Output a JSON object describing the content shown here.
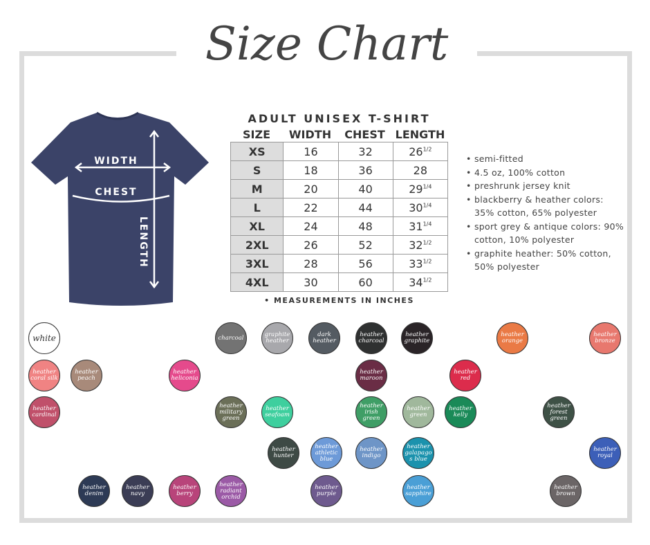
{
  "title": "Size Chart",
  "shirt": {
    "color": "#3b4368",
    "labels": {
      "width": "WIDTH",
      "chest": "CHEST",
      "length": "LENGTH"
    }
  },
  "table": {
    "title": "ADULT UNISEX T-SHIRT",
    "headers": [
      "SIZE",
      "WIDTH",
      "CHEST",
      "LENGTH"
    ],
    "rows": [
      {
        "size": "XS",
        "width": "16",
        "chest": "32",
        "length": "26",
        "frac": "1/2"
      },
      {
        "size": "S",
        "width": "18",
        "chest": "36",
        "length": "28",
        "frac": ""
      },
      {
        "size": "M",
        "width": "20",
        "chest": "40",
        "length": "29",
        "frac": "1/4"
      },
      {
        "size": "L",
        "width": "22",
        "chest": "44",
        "length": "30",
        "frac": "1/4"
      },
      {
        "size": "XL",
        "width": "24",
        "chest": "48",
        "length": "31",
        "frac": "1/4"
      },
      {
        "size": "2XL",
        "width": "26",
        "chest": "52",
        "length": "32",
        "frac": "1/2"
      },
      {
        "size": "3XL",
        "width": "28",
        "chest": "56",
        "length": "33",
        "frac": "1/2"
      },
      {
        "size": "4XL",
        "width": "30",
        "chest": "60",
        "length": "34",
        "frac": "1/2"
      }
    ],
    "note": "• MEASUREMENTS IN INCHES"
  },
  "features": [
    "semi-fitted",
    "4.5 oz, 100% cotton",
    "preshrunk jersey knit",
    "blackberry & heather colors: 35% cotton, 65% polyester",
    "sport grey & antique colors: 90% cotton, 10% polyester",
    "graphite heather: 50% cotton, 50% polyester"
  ],
  "swatches": [
    {
      "label": "white",
      "color": "#ffffff"
    },
    {
      "label": "charcoal",
      "color": "#737373"
    },
    {
      "label": "graphite heather",
      "color": "#a8a8ac"
    },
    {
      "label": "dark heather",
      "color": "#545b62"
    },
    {
      "label": "heather charcoal",
      "color": "#2f3131"
    },
    {
      "label": "heather graphite",
      "color": "#2a2427"
    },
    {
      "label": "heather orange",
      "color": "#ea7a45"
    },
    {
      "label": "heather bronze",
      "color": "#e8786e"
    },
    {
      "label": "heather coral silk",
      "color": "#f08383"
    },
    {
      "label": "heather peach",
      "color": "#a88a7a"
    },
    {
      "label": "heather heliconia",
      "color": "#e54a8c"
    },
    {
      "label": "heather maroon",
      "color": "#6a2d45"
    },
    {
      "label": "heather red",
      "color": "#dc2c4c"
    },
    {
      "label": "heather cardinal",
      "color": "#c0506a"
    },
    {
      "label": "heather military green",
      "color": "#6b6f58"
    },
    {
      "label": "heather seafoam",
      "color": "#3ecf9e"
    },
    {
      "label": "heather irish green",
      "color": "#3f9e66"
    },
    {
      "label": "heather green",
      "color": "#a0b89c"
    },
    {
      "label": "heather kelly",
      "color": "#1a8a58"
    },
    {
      "label": "heather forest green",
      "color": "#3e5146"
    },
    {
      "label": "heather hunter",
      "color": "#3e4a45"
    },
    {
      "label": "heather athletic blue",
      "color": "#6d9ad8"
    },
    {
      "label": "heather indigo",
      "color": "#6e95c7"
    },
    {
      "label": "heather galapagos blue",
      "color": "#1b92ad"
    },
    {
      "label": "heather royal",
      "color": "#3c5fb8"
    },
    {
      "label": "heather denim",
      "color": "#2d3a55"
    },
    {
      "label": "heather navy",
      "color": "#3b3d55"
    },
    {
      "label": "heather berry",
      "color": "#b8447a"
    },
    {
      "label": "heather radiant orchid",
      "color": "#9b5aa6"
    },
    {
      "label": "heather purple",
      "color": "#6e5a8e"
    },
    {
      "label": "heather sapphire",
      "color": "#4a9fd6"
    },
    {
      "label": "heather brown",
      "color": "#6b6566"
    }
  ]
}
